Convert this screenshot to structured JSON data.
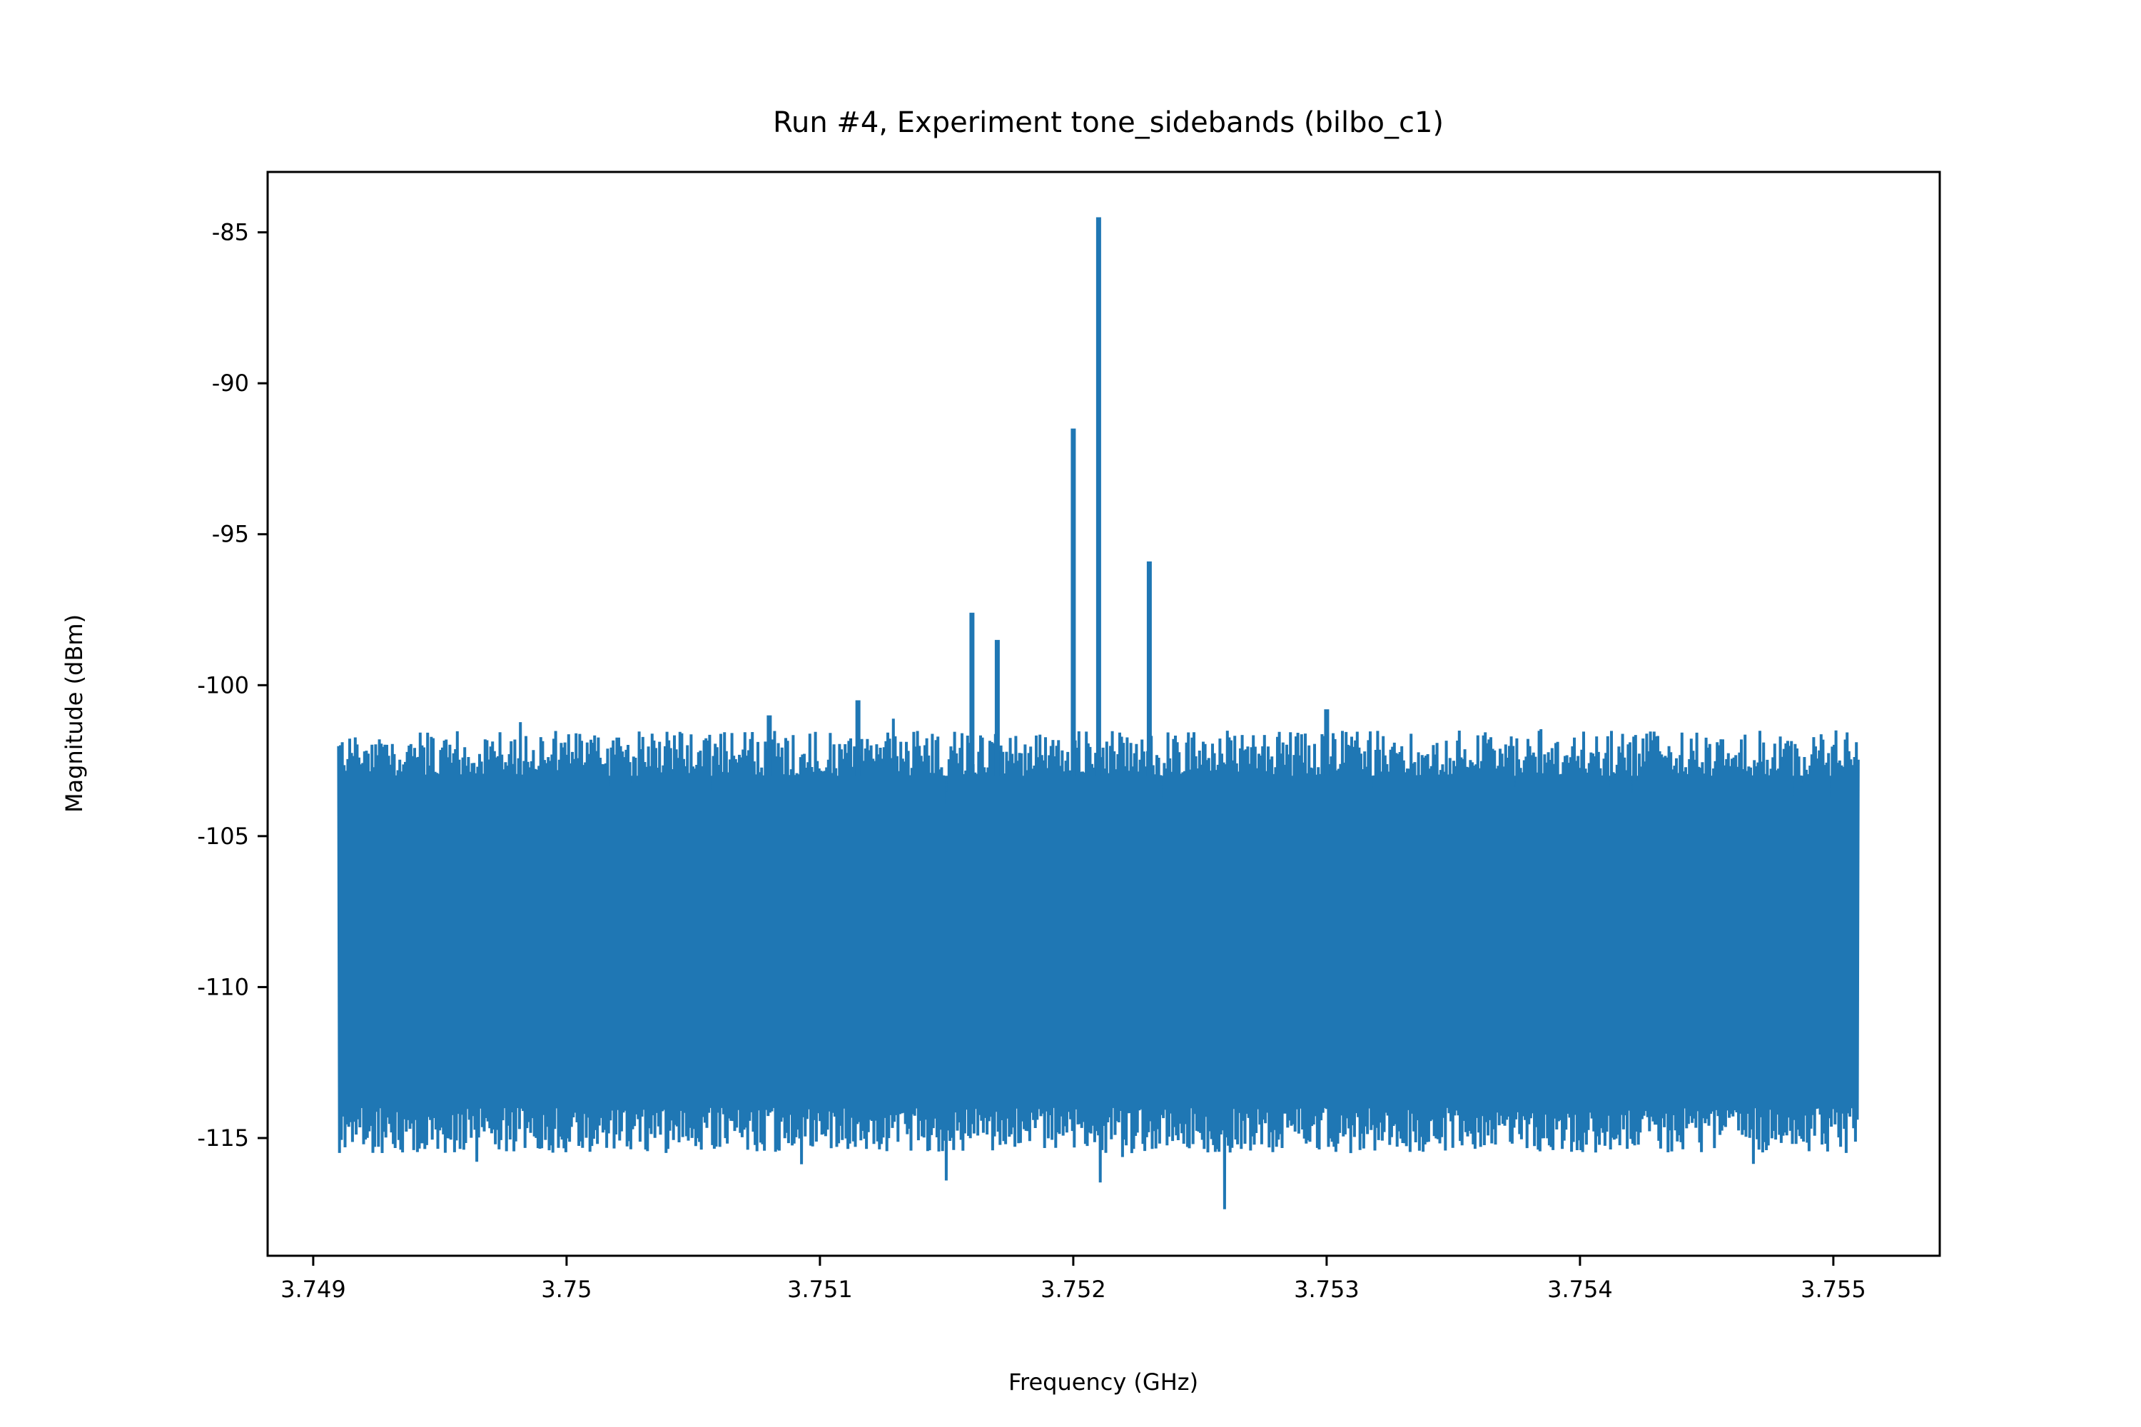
{
  "chart_data": {
    "type": "line",
    "title": "Run #4, Experiment tone_sidebands (bilbo_c1)",
    "xlabel": "Frequency (GHz)",
    "ylabel": "Magnitude (dBm)",
    "xlim": [
      3.74882,
      3.75542
    ],
    "ylim": [
      -118.9,
      -83.0
    ],
    "grid": false,
    "series_color": "#1f77b4",
    "x_ticks": [
      {
        "value": 3.749,
        "label": "3.749"
      },
      {
        "value": 3.75,
        "label": "3.75"
      },
      {
        "value": 3.751,
        "label": "3.751"
      },
      {
        "value": 3.752,
        "label": "3.752"
      },
      {
        "value": 3.753,
        "label": "3.753"
      },
      {
        "value": 3.754,
        "label": "3.754"
      },
      {
        "value": 3.755,
        "label": "3.755"
      }
    ],
    "y_ticks": [
      {
        "value": -85,
        "label": "-85"
      },
      {
        "value": -90,
        "label": "-90"
      },
      {
        "value": -95,
        "label": "-95"
      },
      {
        "value": -100,
        "label": "-100"
      },
      {
        "value": -105,
        "label": "-105"
      },
      {
        "value": -110,
        "label": "-110"
      },
      {
        "value": -115,
        "label": "-115"
      }
    ],
    "noise": {
      "x_start": 3.7491,
      "x_end": 3.7551,
      "floor_top": -103,
      "floor_bottom": -114,
      "mean": -108.5,
      "min": -117.6
    },
    "peaks": [
      {
        "x": 3.7521,
        "y": -84.5
      },
      {
        "x": 3.752,
        "y": -91.5
      },
      {
        "x": 3.7523,
        "y": -95.9
      },
      {
        "x": 3.7516,
        "y": -97.6
      },
      {
        "x": 3.7517,
        "y": -98.5
      },
      {
        "x": 3.75115,
        "y": -100.5
      },
      {
        "x": 3.753,
        "y": -100.8
      },
      {
        "x": 3.7508,
        "y": -101.0
      }
    ]
  }
}
